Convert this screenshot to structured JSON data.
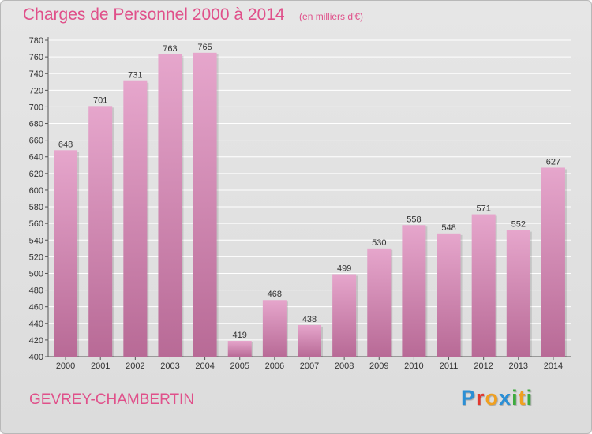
{
  "chart_data": {
    "type": "bar",
    "title": "Charges de Personnel 2000 à 2014",
    "subtitle": "(en milliers d'€)",
    "categories": [
      "2000",
      "2001",
      "2002",
      "2003",
      "2004",
      "2005",
      "2006",
      "2007",
      "2008",
      "2009",
      "2010",
      "2011",
      "2012",
      "2013",
      "2014"
    ],
    "values": [
      648,
      701,
      731,
      763,
      765,
      419,
      468,
      438,
      499,
      530,
      558,
      548,
      571,
      552,
      627
    ],
    "ylim": [
      400,
      780
    ],
    "yticks": [
      400,
      420,
      440,
      460,
      480,
      500,
      520,
      540,
      560,
      580,
      600,
      620,
      640,
      660,
      680,
      700,
      720,
      740,
      760,
      780
    ],
    "grid": true,
    "legend": "none",
    "bar_color_top": "#e6a6cc",
    "bar_color_bottom": "#b86a96"
  },
  "footer": {
    "place": "GEVREY-CHAMBERTIN",
    "logo_letters": [
      {
        "ch": "P",
        "color": "#2a8fd6"
      },
      {
        "ch": "r",
        "color": "#e2382f"
      },
      {
        "ch": "o",
        "color": "#f0a020"
      },
      {
        "ch": "x",
        "color": "#2a8fd6"
      },
      {
        "ch": "i",
        "color": "#3cab3c"
      },
      {
        "ch": "t",
        "color": "#f0a020"
      },
      {
        "ch": "i",
        "color": "#3cab3c"
      }
    ]
  }
}
